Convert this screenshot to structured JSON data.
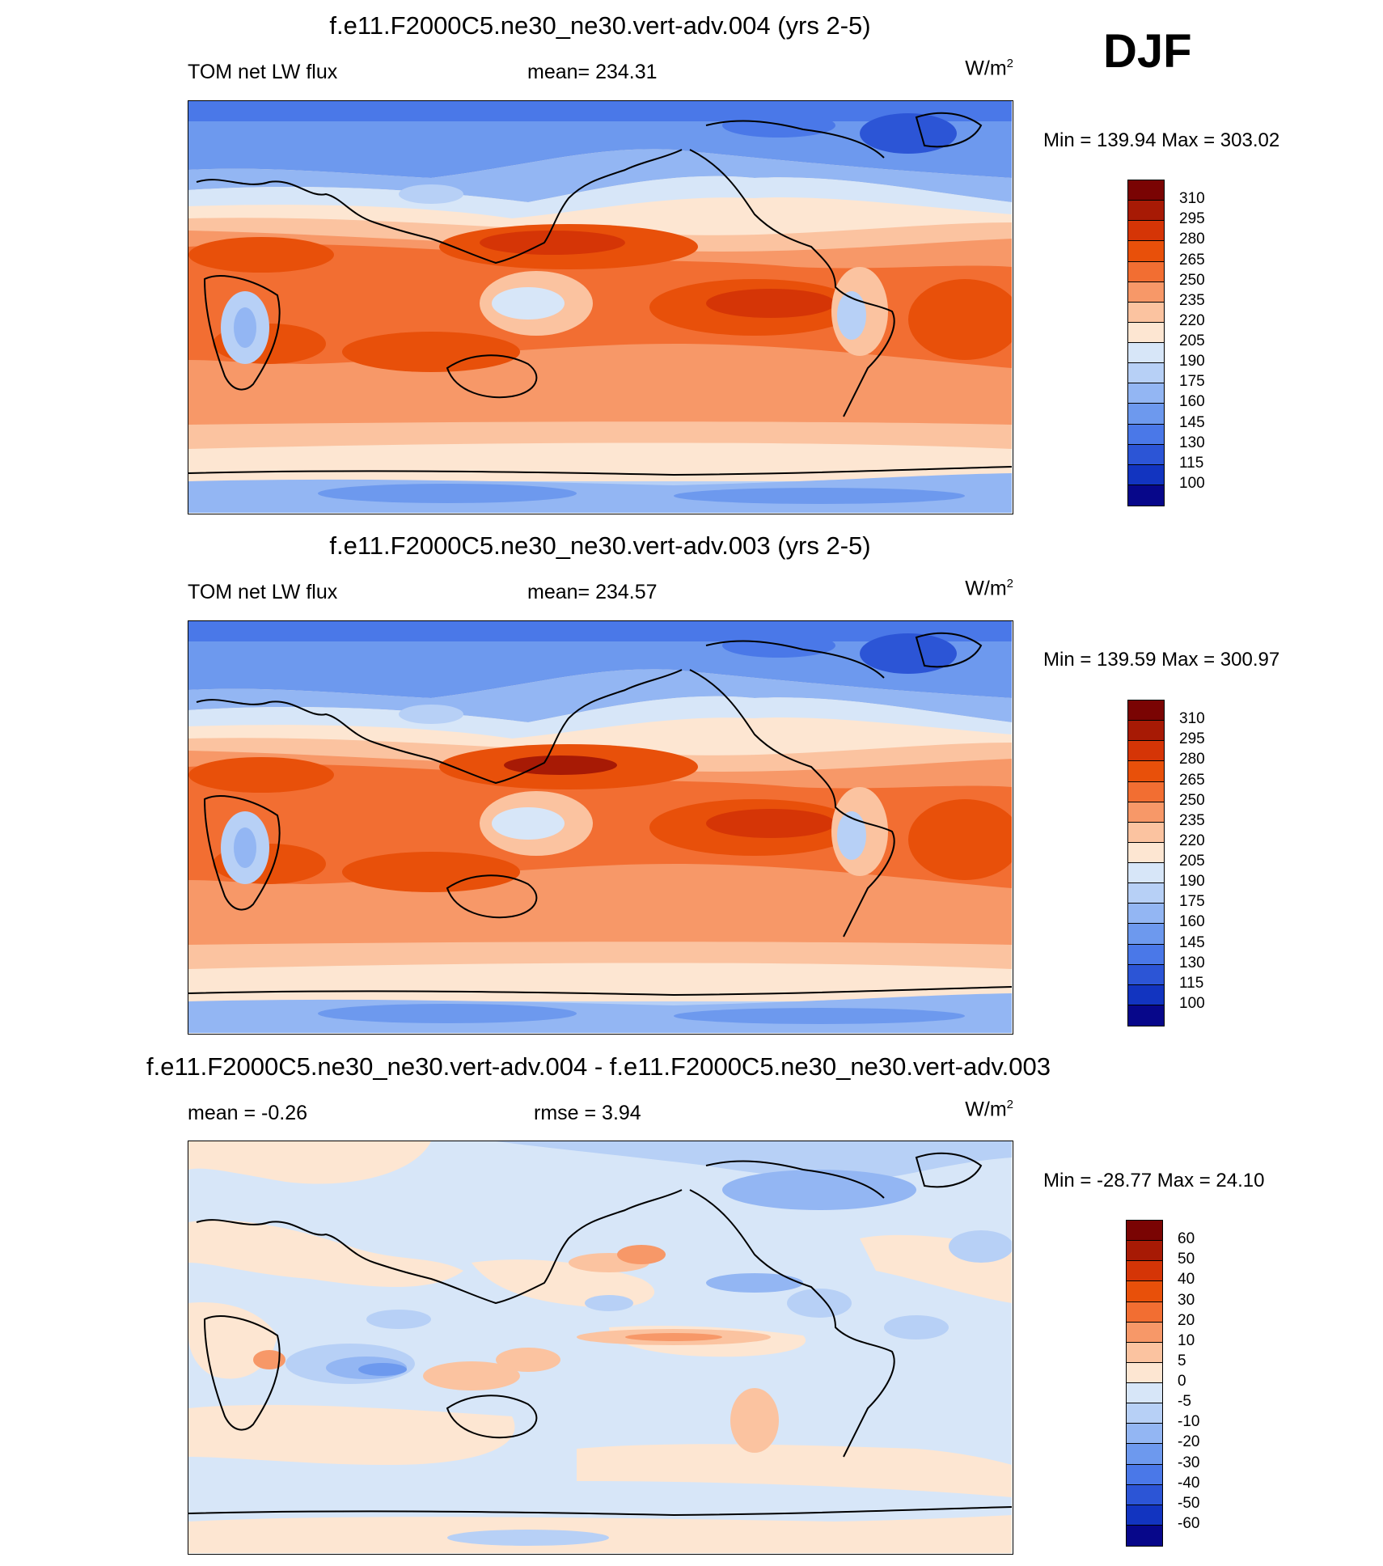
{
  "season": "DJF",
  "units_text": "W/m",
  "units_sup": "2",
  "panels": [
    {
      "title": "f.e11.F2000C5.ne30_ne30.vert-adv.004 (yrs 2-5)",
      "variable": "TOM net LW flux",
      "stat_text": "mean= 234.31",
      "minmax": "Min = 139.94 Max = 303.02"
    },
    {
      "title": "f.e11.F2000C5.ne30_ne30.vert-adv.003 (yrs 2-5)",
      "variable": "TOM net LW flux",
      "stat_text": "mean= 234.57",
      "minmax": "Min = 139.59 Max = 300.97"
    },
    {
      "title": "f.e11.F2000C5.ne30_ne30.vert-adv.004 - f.e11.F2000C5.ne30_ne30.vert-adv.003",
      "variable": "mean =  -0.26",
      "stat_text": "rmse =   3.94",
      "minmax": "Min = -28.77 Max =  24.10"
    }
  ],
  "colorbars": [
    {
      "labels": [
        "310",
        "295",
        "280",
        "265",
        "250",
        "235",
        "220",
        "205",
        "190",
        "175",
        "160",
        "145",
        "130",
        "115",
        "100"
      ],
      "colors": [
        "#7a0403",
        "#a71a05",
        "#d53506",
        "#e8500a",
        "#f26e32",
        "#f79868",
        "#fbc3a0",
        "#fde6d2",
        "#d7e6f8",
        "#b7d0f6",
        "#93b6f3",
        "#6d99ee",
        "#4a78e8",
        "#2c55d6",
        "#1234c0",
        "#07078a"
      ]
    },
    {
      "labels": [
        "310",
        "295",
        "280",
        "265",
        "250",
        "235",
        "220",
        "205",
        "190",
        "175",
        "160",
        "145",
        "130",
        "115",
        "100"
      ],
      "colors": [
        "#7a0403",
        "#a71a05",
        "#d53506",
        "#e8500a",
        "#f26e32",
        "#f79868",
        "#fbc3a0",
        "#fde6d2",
        "#d7e6f8",
        "#b7d0f6",
        "#93b6f3",
        "#6d99ee",
        "#4a78e8",
        "#2c55d6",
        "#1234c0",
        "#07078a"
      ]
    },
    {
      "labels": [
        "60",
        "50",
        "40",
        "30",
        "20",
        "10",
        "5",
        "0",
        "-5",
        "-10",
        "-20",
        "-30",
        "-40",
        "-50",
        "-60"
      ],
      "colors": [
        "#7a0403",
        "#a71a05",
        "#d53506",
        "#e8500a",
        "#f26e32",
        "#f79868",
        "#fbc3a0",
        "#fde6d2",
        "#d7e6f8",
        "#b7d0f6",
        "#93b6f3",
        "#6d99ee",
        "#4a78e8",
        "#2c55d6",
        "#1234c0",
        "#07078a"
      ]
    }
  ]
}
